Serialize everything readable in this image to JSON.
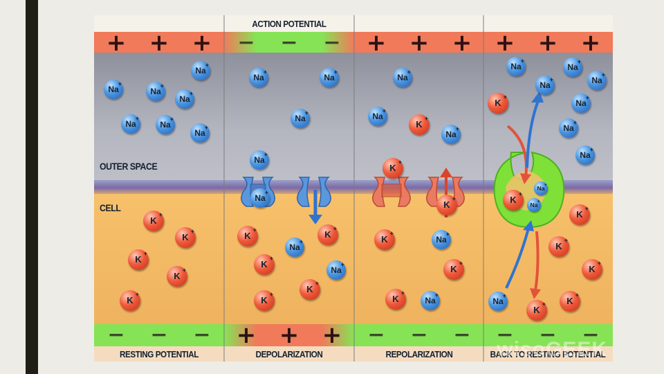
{
  "title": "ACTION POTENTIAL",
  "region_labels": {
    "outer": "OUTER SPACE",
    "cell": "CELL"
  },
  "stages": [
    {
      "label": "RESTING POTENTIAL",
      "top_charge": "+",
      "bottom_charge": "−"
    },
    {
      "label": "DEPOLARIZATION",
      "top_charge": "−",
      "bottom_charge": "+"
    },
    {
      "label": "REPOLARIZATION",
      "top_charge": "+",
      "bottom_charge": "−"
    },
    {
      "label": "BACK TO RESTING POTENTIAL",
      "top_charge": "+",
      "bottom_charge": "−"
    }
  ],
  "ion_labels": {
    "sodium": "Na",
    "potassium": "K",
    "plus": "+"
  },
  "watermark": "wisoGEEK",
  "colors": {
    "positive_band": "#f0735a",
    "negative_band": "#7fe858",
    "outer_space": "#a7a9b4",
    "cell": "#f3b767",
    "membrane": "#8d7fb8",
    "sodium": "#3f8fe0",
    "potassium": "#e8472c",
    "sodium_channel": "#4f8fd8",
    "potassium_channel": "#ea6a4f",
    "pump": "#79e030"
  }
}
